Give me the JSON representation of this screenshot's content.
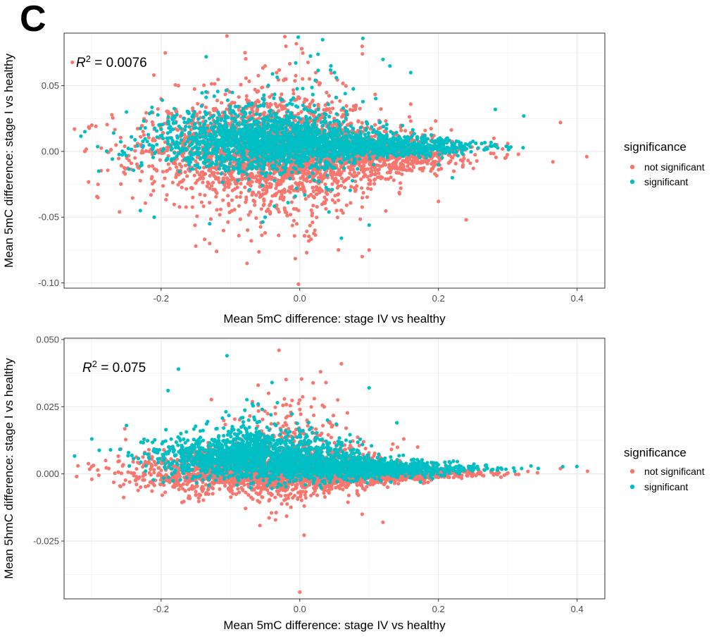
{
  "figure": {
    "panel_letter": "C"
  },
  "colors": {
    "not_significant": "#F8766D",
    "significant": "#00BFC4",
    "grid_major": "#EBEBEB",
    "grid_minor": "#F2F2F2",
    "panel_border": "#333333"
  },
  "chart_data": [
    {
      "type": "scatter",
      "title": "",
      "xlabel": "Mean 5mC difference: stage IV vs healthy",
      "ylabel": "Mean 5mC difference: stage I vs healthy",
      "xlim": [
        -0.34,
        0.44
      ],
      "ylim": [
        -0.104,
        0.09
      ],
      "xticks": [
        -0.2,
        0.0,
        0.2,
        0.4
      ],
      "xtick_labels": [
        "-0.2",
        "0.0",
        "0.2",
        "0.4"
      ],
      "yticks": [
        -0.1,
        -0.05,
        0.0,
        0.05
      ],
      "ytick_labels": [
        "-0.10",
        "-0.05",
        "0.00",
        "0.05"
      ],
      "grid": true,
      "annotation": {
        "r2_label": "R",
        "r2_sup": "2",
        "r2_value": " = 0.0076"
      },
      "legend": {
        "title": "significance",
        "position": "right",
        "entries": [
          "not significant",
          "significant"
        ]
      },
      "series": [
        {
          "name": "not significant",
          "color": "#F8766D",
          "points": [
            [
              0.414,
              -0.004
            ],
            [
              0.376,
              0.022
            ],
            [
              -0.31,
              0.0
            ],
            [
              -0.325,
              0.017
            ],
            [
              -0.3,
              0.02
            ],
            [
              -0.15,
              -0.072
            ],
            [
              -0.002,
              -0.101
            ],
            [
              0.1,
              -0.075
            ],
            [
              0.09,
              -0.08
            ],
            [
              -0.07,
              -0.068
            ],
            [
              -0.13,
              -0.07
            ],
            [
              -0.05,
              -0.062
            ],
            [
              -0.02,
              0.08
            ],
            [
              0.09,
              0.08
            ],
            [
              -0.02,
              0.055
            ],
            [
              0.24,
              -0.052
            ],
            [
              -0.26,
              -0.046
            ],
            [
              0.3,
              0.006
            ],
            [
              0.28,
              0.01
            ],
            [
              0.16,
              0.036
            ],
            [
              0.2,
              -0.038
            ],
            [
              -0.2,
              0.04
            ],
            [
              -0.05,
              0.065
            ],
            [
              0.01,
              -0.077
            ],
            [
              -0.12,
              -0.076
            ]
          ]
        },
        {
          "name": "significant",
          "color": "#00BFC4",
          "points": [
            [
              0.033,
              0.085
            ],
            [
              0.091,
              0.086
            ],
            [
              0.323,
              0.027
            ],
            [
              0.282,
              0.032
            ],
            [
              -0.135,
              0.072
            ],
            [
              0.16,
              0.06
            ],
            [
              0.13,
              0.065
            ],
            [
              -0.21,
              -0.05
            ],
            [
              -0.23,
              -0.045
            ],
            [
              0.1,
              -0.056
            ],
            [
              0.06,
              -0.066
            ],
            [
              -0.31,
              0.015
            ],
            [
              -0.29,
              -0.015
            ],
            [
              -0.13,
              -0.055
            ],
            [
              0.2,
              -0.01
            ],
            [
              0.22,
              -0.02
            ],
            [
              -0.25,
              0.03
            ],
            [
              0.05,
              0.06
            ],
            [
              0.12,
              0.07
            ],
            [
              -0.05,
              -0.05
            ]
          ]
        }
      ],
      "clouds": [
        {
          "series": "not significant",
          "cx": -0.05,
          "cy": 0.0,
          "sx": 0.09,
          "sy": 0.02,
          "n": 1800,
          "seed": 11
        },
        {
          "series": "not significant",
          "cx": 0.1,
          "cy": -0.002,
          "sx": 0.07,
          "sy": 0.012,
          "n": 900,
          "seed": 12
        },
        {
          "series": "not significant",
          "cx": -0.02,
          "cy": 0.0,
          "sx": 0.05,
          "sy": 0.032,
          "n": 400,
          "seed": 13
        },
        {
          "series": "significant",
          "cx": -0.06,
          "cy": 0.008,
          "sx": 0.075,
          "sy": 0.012,
          "n": 1400,
          "seed": 21
        },
        {
          "series": "significant",
          "cx": 0.1,
          "cy": 0.004,
          "sx": 0.08,
          "sy": 0.006,
          "n": 900,
          "seed": 22
        },
        {
          "series": "significant",
          "cx": 0.0,
          "cy": 0.01,
          "sx": 0.05,
          "sy": 0.025,
          "n": 150,
          "seed": 23
        }
      ]
    },
    {
      "type": "scatter",
      "title": "",
      "xlabel": "Mean 5mC difference: stage IV vs healthy",
      "ylabel": "Mean 5hmC difference: stage I vs healthy",
      "xlim": [
        -0.34,
        0.44
      ],
      "ylim": [
        -0.0465,
        0.0505
      ],
      "xticks": [
        -0.2,
        0.0,
        0.2,
        0.4
      ],
      "xtick_labels": [
        "-0.2",
        "0.0",
        "0.2",
        "0.4"
      ],
      "yticks": [
        -0.025,
        0.0,
        0.025,
        0.05
      ],
      "ytick_labels": [
        "-0.025",
        "0.000",
        "0.025",
        "0.050"
      ],
      "grid": true,
      "annotation": {
        "r2_label": "R",
        "r2_sup": "2",
        "r2_value": " = 0.075"
      },
      "legend": {
        "title": "significance",
        "position": "right",
        "entries": [
          "not significant",
          "significant"
        ]
      },
      "series": [
        {
          "name": "not significant",
          "color": "#F8766D",
          "points": [
            [
              0.415,
              0.001
            ],
            [
              0.376,
              0.002
            ],
            [
              0.0,
              -0.044
            ],
            [
              -0.03,
              0.046
            ],
            [
              0.03,
              0.038
            ],
            [
              0.06,
              0.041
            ],
            [
              0.15,
              0.013
            ],
            [
              0.17,
              0.01
            ],
            [
              0.12,
              -0.018
            ],
            [
              0.09,
              -0.015
            ],
            [
              -0.32,
              0.003
            ],
            [
              -0.3,
              -0.002
            ],
            [
              -0.28,
              0.005
            ],
            [
              -0.06,
              0.033
            ],
            [
              -0.045,
              0.03
            ]
          ]
        },
        {
          "name": "significant",
          "color": "#00BFC4",
          "points": [
            [
              -0.105,
              0.044
            ],
            [
              -0.175,
              0.039
            ],
            [
              -0.19,
              0.031
            ],
            [
              0.1,
              0.032
            ],
            [
              0.14,
              0.019
            ],
            [
              0.32,
              0.002
            ],
            [
              0.31,
              0.001
            ],
            [
              -0.3,
              0.013
            ],
            [
              -0.25,
              0.018
            ],
            [
              -0.04,
              0.034
            ],
            [
              -0.06,
              0.026
            ],
            [
              0.04,
              0.02
            ]
          ]
        }
      ],
      "clouds": [
        {
          "series": "not significant",
          "cx": -0.05,
          "cy": 0.001,
          "sx": 0.09,
          "sy": 0.004,
          "n": 2000,
          "seed": 31
        },
        {
          "series": "not significant",
          "cx": 0.1,
          "cy": 0.0,
          "sx": 0.08,
          "sy": 0.002,
          "n": 900,
          "seed": 32
        },
        {
          "series": "not significant",
          "cx": -0.01,
          "cy": 0.008,
          "sx": 0.04,
          "sy": 0.01,
          "n": 300,
          "seed": 33
        },
        {
          "series": "significant",
          "cx": -0.06,
          "cy": 0.006,
          "sx": 0.07,
          "sy": 0.004,
          "n": 1500,
          "seed": 41
        },
        {
          "series": "significant",
          "cx": 0.1,
          "cy": 0.002,
          "sx": 0.08,
          "sy": 0.0025,
          "n": 900,
          "seed": 42
        },
        {
          "series": "significant",
          "cx": -0.08,
          "cy": 0.012,
          "sx": 0.05,
          "sy": 0.006,
          "n": 200,
          "seed": 43
        }
      ]
    }
  ]
}
